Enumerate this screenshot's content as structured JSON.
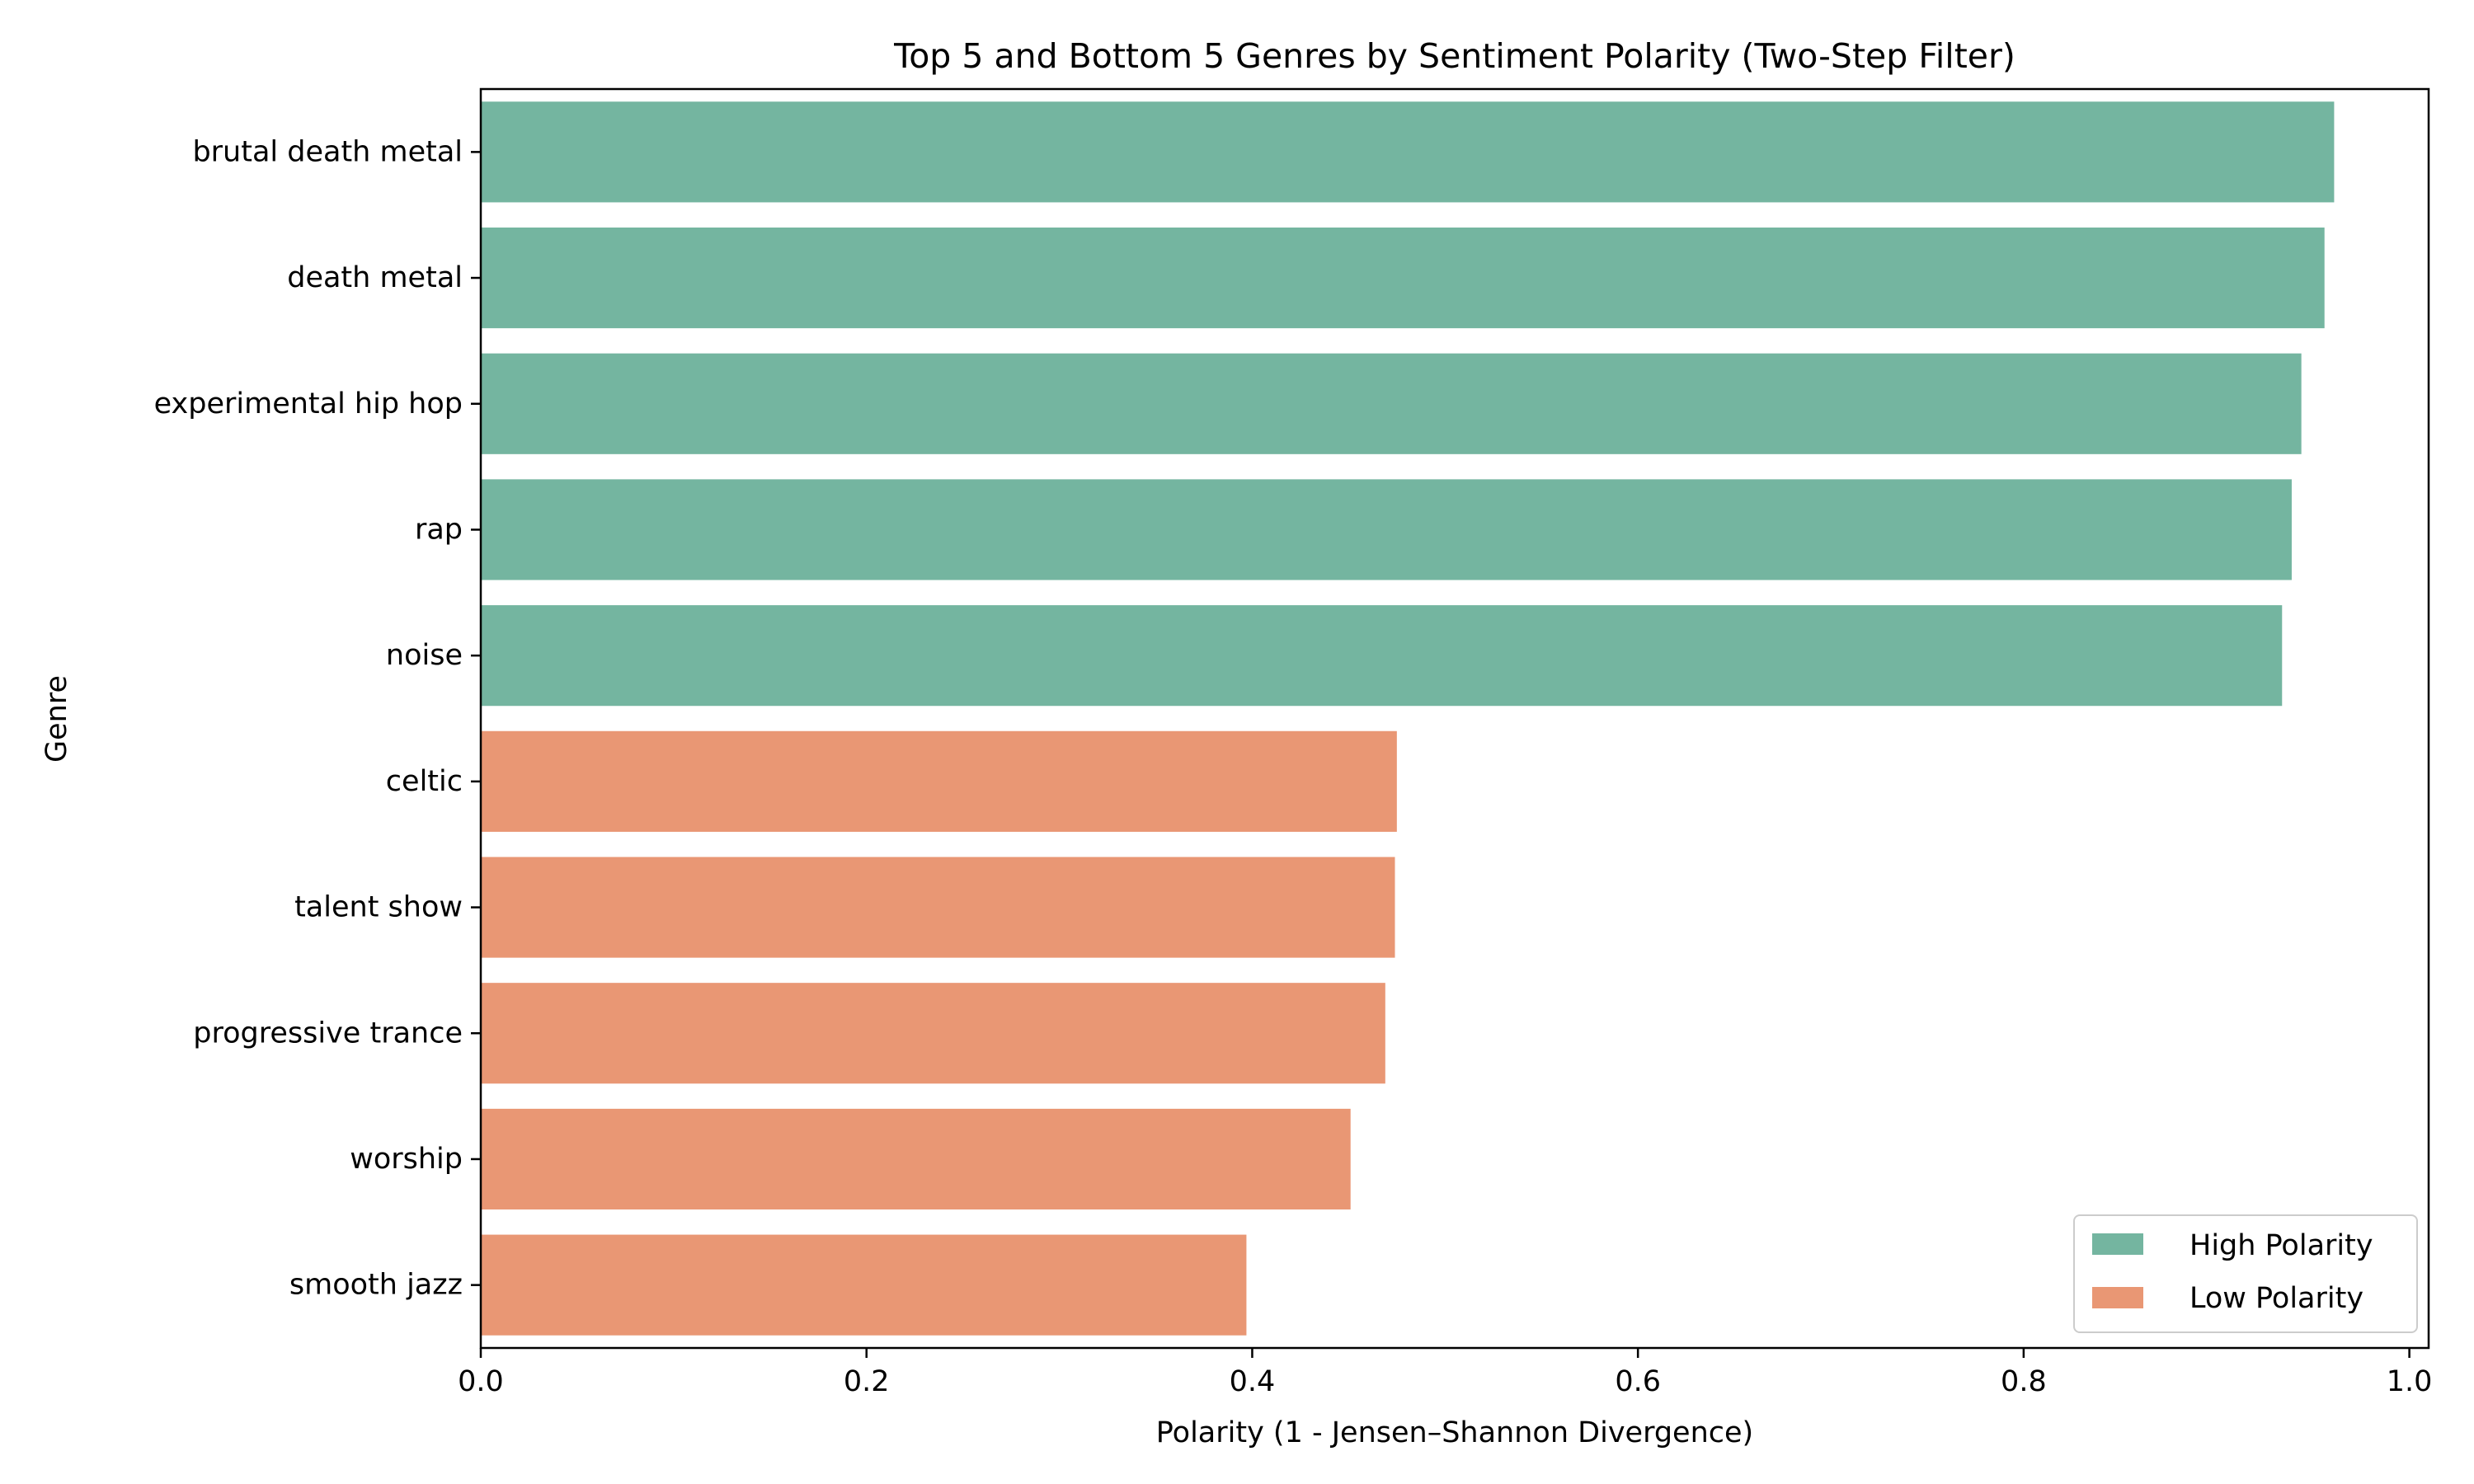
{
  "chart_data": {
    "type": "bar",
    "orientation": "horizontal",
    "title": "Top 5 and Bottom 5 Genres by Sentiment Polarity (Two-Step Filter)",
    "xlabel": "Polarity (1 - Jensen–Shannon Divergence)",
    "ylabel": "Genre",
    "xlim": [
      0.0,
      1.01
    ],
    "xticks": [
      0.0,
      0.2,
      0.4,
      0.6,
      0.8,
      1.0
    ],
    "xtick_labels": [
      "0.0",
      "0.2",
      "0.4",
      "0.6",
      "0.8",
      "1.0"
    ],
    "grid": false,
    "legend_position": "bottom-right",
    "categories": [
      "brutal death metal",
      "death metal",
      "experimental hip hop",
      "rap",
      "noise",
      "celtic",
      "talent show",
      "progressive trance",
      "worship",
      "smooth jazz"
    ],
    "values": [
      0.961,
      0.956,
      0.944,
      0.939,
      0.934,
      0.475,
      0.474,
      0.469,
      0.451,
      0.397
    ],
    "groups": [
      "High Polarity",
      "High Polarity",
      "High Polarity",
      "High Polarity",
      "High Polarity",
      "Low Polarity",
      "Low Polarity",
      "Low Polarity",
      "Low Polarity",
      "Low Polarity"
    ],
    "legend": [
      {
        "name": "High Polarity",
        "color": "#74b5a0"
      },
      {
        "name": "Low Polarity",
        "color": "#e99774"
      }
    ]
  }
}
